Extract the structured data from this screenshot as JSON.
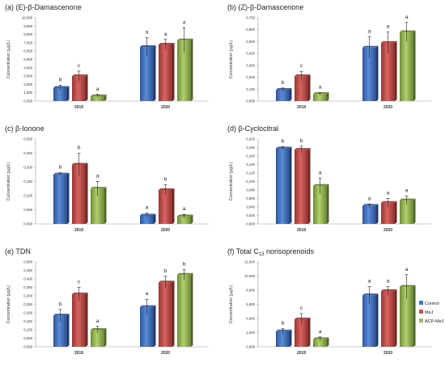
{
  "legend": {
    "items": [
      {
        "name": "Control",
        "color": "#4472c4"
      },
      {
        "name": "MeJ",
        "color": "#c0504d"
      },
      {
        "name": "ACP-MeJ",
        "color": "#9bbb59"
      }
    ]
  },
  "chart_data": [
    {
      "type": "bar",
      "title": "(a) (E)-β-Damascenone",
      "ylabel": "Concentration (µg/L)",
      "categories": [
        "2019",
        "2020"
      ],
      "ylim": [
        0,
        10
      ],
      "yticks": [
        "0,000",
        "1,000",
        "2,000",
        "3,000",
        "4,000",
        "5,000",
        "6,000",
        "7,000",
        "8,000",
        "9,000",
        "10,000"
      ],
      "series": [
        {
          "name": "Control",
          "values": [
            1.6,
            6.5
          ],
          "errors": [
            0.3,
            1.1
          ],
          "letters": [
            "b",
            "a"
          ]
        },
        {
          "name": "MeJ",
          "values": [
            3.0,
            6.8
          ],
          "errors": [
            0.6,
            0.6
          ],
          "letters": [
            "c",
            "a"
          ]
        },
        {
          "name": "ACP-MeJ",
          "values": [
            0.6,
            7.3
          ],
          "errors": [
            0.2,
            1.5
          ],
          "letters": [
            "a",
            "a"
          ]
        }
      ]
    },
    {
      "type": "bar",
      "title": "(b) (Z)-β-Damascenone",
      "ylabel": "Concentration (µg/L)",
      "categories": [
        "2019",
        "2020"
      ],
      "ylim": [
        0,
        0.7
      ],
      "yticks": [
        "0,000",
        "0,100",
        "0,200",
        "0,300",
        "0,400",
        "0,500",
        "0,600",
        "0,700"
      ],
      "series": [
        {
          "name": "Control",
          "values": [
            0.095,
            0.45
          ],
          "errors": [
            0.015,
            0.09
          ],
          "letters": [
            "b",
            "a"
          ]
        },
        {
          "name": "MeJ",
          "values": [
            0.21,
            0.49
          ],
          "errors": [
            0.04,
            0.09
          ],
          "letters": [
            "c",
            "a"
          ]
        },
        {
          "name": "ACP-MeJ",
          "values": [
            0.06,
            0.58
          ],
          "errors": [
            0.01,
            0.08
          ],
          "letters": [
            "a",
            "a"
          ]
        }
      ]
    },
    {
      "type": "bar",
      "title": "(c) β-Ionone",
      "ylabel": "Concentration (µg/L)",
      "categories": [
        "2019",
        "2020"
      ],
      "ylim": [
        0,
        0.3
      ],
      "yticks": [
        "0,000",
        "0,050",
        "0,100",
        "0,150",
        "0,200",
        "0,250",
        "0,300"
      ],
      "series": [
        {
          "name": "Control",
          "values": [
            0.175,
            0.03
          ],
          "errors": [
            0.006,
            0.008
          ],
          "letters": [
            "b",
            "a"
          ]
        },
        {
          "name": "MeJ",
          "values": [
            0.21,
            0.12
          ],
          "errors": [
            0.04,
            0.018
          ],
          "letters": [
            "b",
            "b"
          ]
        },
        {
          "name": "ACP-MeJ",
          "values": [
            0.125,
            0.027
          ],
          "errors": [
            0.025,
            0.007
          ],
          "letters": [
            "a",
            "a"
          ]
        }
      ]
    },
    {
      "type": "bar",
      "title": "(d) β-Cyclocitral",
      "ylabel": "Concentration (µg/L)",
      "categories": [
        "2019",
        "2020"
      ],
      "ylim": [
        0,
        0.2
      ],
      "yticks": [
        "0,000",
        "0,020",
        "0,040",
        "0,060",
        "0,080",
        "0,100",
        "0,120",
        "0,140",
        "0,160",
        "0,180",
        "0,200"
      ],
      "series": [
        {
          "name": "Control",
          "values": [
            0.178,
            0.043
          ],
          "errors": [
            0.004,
            0.004
          ],
          "letters": [
            "b",
            "a"
          ]
        },
        {
          "name": "MeJ",
          "values": [
            0.175,
            0.05
          ],
          "errors": [
            0.008,
            0.01
          ],
          "letters": [
            "b",
            "a"
          ]
        },
        {
          "name": "ACP-MeJ",
          "values": [
            0.09,
            0.056
          ],
          "errors": [
            0.018,
            0.01
          ],
          "letters": [
            "a",
            "a"
          ]
        }
      ]
    },
    {
      "type": "bar",
      "title": "(e) TDN",
      "ylabel": "Concentration (µg/L)",
      "categories": [
        "2019",
        "2020"
      ],
      "ylim": [
        0,
        0.5
      ],
      "yticks": [
        "0,000",
        "0,050",
        "0,100",
        "0,150",
        "0,200",
        "0,250",
        "0,300",
        "0,350",
        "0,400",
        "0,450",
        "0,500"
      ],
      "series": [
        {
          "name": "Control",
          "values": [
            0.185,
            0.235
          ],
          "errors": [
            0.035,
            0.045
          ],
          "letters": [
            "b",
            "a"
          ]
        },
        {
          "name": "MeJ",
          "values": [
            0.31,
            0.38
          ],
          "errors": [
            0.04,
            0.035
          ],
          "letters": [
            "c",
            "b"
          ]
        },
        {
          "name": "ACP-MeJ",
          "values": [
            0.1,
            0.425
          ],
          "errors": [
            0.02,
            0.03
          ],
          "letters": [
            "a",
            "b"
          ]
        }
      ]
    },
    {
      "type": "bar",
      "title": "(f) Total C",
      "title_sub": "13",
      "title_tail": " norisoprenoids",
      "ylabel": "Concentration (µg/L)",
      "categories": [
        "2019",
        "2020"
      ],
      "ylim": [
        0,
        12
      ],
      "yticks": [
        "0,000",
        "2,000",
        "4,000",
        "6,000",
        "8,000",
        "10,000",
        "12,000"
      ],
      "series": [
        {
          "name": "Control",
          "values": [
            2.2,
            7.3
          ],
          "errors": [
            0.4,
            1.2
          ],
          "letters": [
            "b",
            "a"
          ]
        },
        {
          "name": "MeJ",
          "values": [
            3.9,
            7.9
          ],
          "errors": [
            0.8,
            0.6
          ],
          "letters": [
            "c",
            "a"
          ]
        },
        {
          "name": "ACP-MeJ",
          "values": [
            1.1,
            8.5
          ],
          "errors": [
            0.3,
            1.7
          ],
          "letters": [
            "a",
            "a"
          ]
        }
      ]
    }
  ]
}
